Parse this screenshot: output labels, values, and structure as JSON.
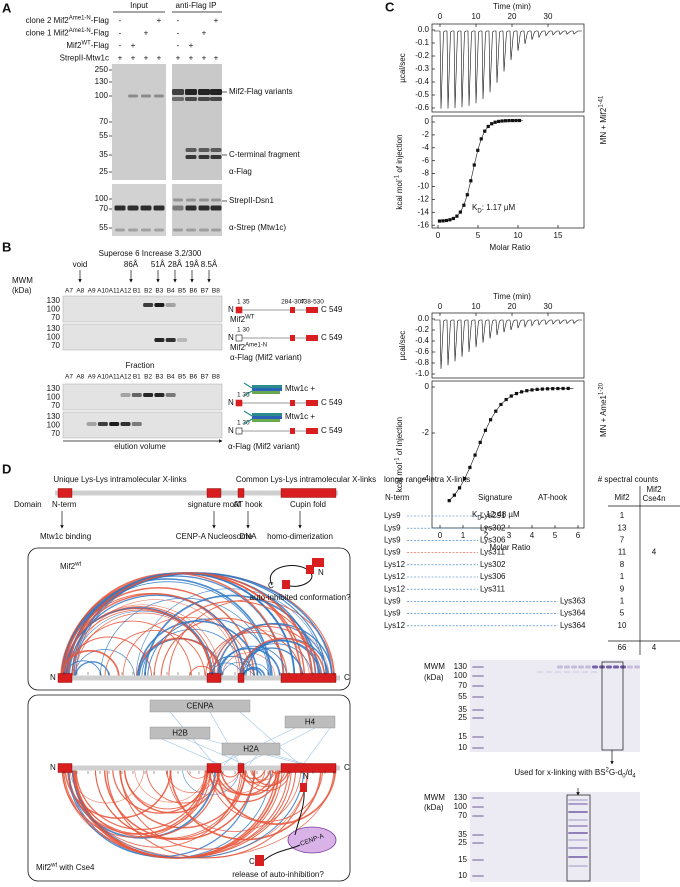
{
  "panel_a": {
    "letter": "A",
    "input": "Input",
    "ip": "anti-Flag IP",
    "rows": [
      {
        "label": [
          "clone 2 Mif2",
          "Ame1-N",
          "-Flag"
        ],
        "lanes": [
          "-",
          null,
          null,
          "+",
          "-",
          null,
          null,
          "+"
        ]
      },
      {
        "label": [
          "clone 1 Mif2",
          "Ame1-N",
          "-Flag"
        ],
        "lanes": [
          "-",
          null,
          "+",
          null,
          "-",
          null,
          "+",
          null
        ]
      },
      {
        "label": [
          "Mif2",
          "WT",
          "-Flag"
        ],
        "lanes": [
          "-",
          "+",
          null,
          null,
          "-",
          "+",
          null,
          null
        ]
      },
      {
        "label": [
          "StrepII-Mtw1c"
        ],
        "lanes": [
          "+",
          "+",
          "+",
          "+",
          "+",
          "+",
          "+",
          "+"
        ]
      }
    ],
    "mw_top": [
      "250",
      "130",
      "100",
      "70",
      "55",
      "35",
      "25"
    ],
    "mw_bottom": [
      "100",
      "70",
      "55"
    ],
    "annotations": [
      "Mif2-Flag variants",
      "C-terminal fragment",
      "α-Flag",
      "StrepII-Dsn1",
      "α-Strep (Mtw1c)"
    ]
  },
  "panel_b": {
    "letter": "B",
    "column": "Superose 6 Increase 3.2/300",
    "markers": [
      "void",
      "86Å",
      "51Å",
      "28Å",
      "19Å",
      "8.5Å"
    ],
    "mwm": "MWM",
    "kda": "(kDa)",
    "fractions": [
      "A7",
      "A8",
      "A9",
      "A10",
      "A11",
      "A12",
      "B1",
      "B2",
      "B3",
      "B4",
      "B5",
      "B6",
      "B7",
      "B8"
    ],
    "fraction_label": "Fraction",
    "gel_mw": [
      "130",
      "100",
      "70"
    ],
    "schematic": {
      "n": "N",
      "c": "C 549",
      "ranges": [
        "284-307",
        "438-530"
      ]
    },
    "constructs": [
      {
        "start": "1 35",
        "name": [
          "Mif2",
          "WT"
        ]
      },
      {
        "start": "1 30",
        "name": [
          "Mif2",
          "Ame1-N"
        ]
      }
    ],
    "flag": "α-Flag (Mif2 variant)",
    "complex": "Mtw1c +",
    "elution": "elution volume"
  },
  "panel_c": {
    "letter": "C",
    "itc": [
      {
        "time_label": "Time (min)",
        "time_ticks": [
          "0",
          "10",
          "20",
          "30"
        ],
        "power_label": "µcal/sec",
        "power_ticks": [
          "0.0",
          "-0.1",
          "-0.2",
          "-0.3",
          "-0.4",
          "-0.5",
          "-0.6"
        ],
        "heat_label": [
          "kcal mol",
          "-1",
          " of injection"
        ],
        "heat_ticks": [
          "0",
          "-2",
          "-4",
          "-6",
          "-8",
          "-10",
          "-12",
          "-14",
          "-16"
        ],
        "ratio_label": "Molar Ratio",
        "ratio_ticks": [
          "0",
          "5",
          "10",
          "15"
        ],
        "kd": [
          "K",
          "D",
          ": 1.17 µM"
        ],
        "sample": [
          "MN + Mif2",
          "1-41"
        ]
      },
      {
        "time_label": "Time (min)",
        "time_ticks": [
          "0",
          "10",
          "20",
          "30"
        ],
        "power_label": "µcal/sec",
        "power_ticks": [
          "0.0",
          "-0.2",
          "-0.4",
          "-0.6",
          "-0.8",
          "-1.0"
        ],
        "heat_label": [
          "kcal mol",
          "-1",
          " of injection"
        ],
        "heat_ticks": [
          "0",
          "-2",
          "-4"
        ],
        "ratio_label": "Molar Ratio",
        "ratio_ticks": [
          "0",
          "1",
          "2",
          "3",
          "4",
          "5",
          "6"
        ],
        "kd": [
          "K",
          "D",
          ": 12.48 µM"
        ],
        "sample": [
          "MN + Ame1",
          "1-20"
        ]
      }
    ]
  },
  "panel_d": {
    "letter": "D",
    "legend": {
      "unique": "Unique Lys-Lys intramolecular X-links",
      "common": "Common Lys-Lys intramolecular X-links",
      "unique_color": "#2f78c4",
      "common_color": "#e8553a"
    },
    "domains": {
      "label": "Domain",
      "names": [
        "N-term",
        "signature motif",
        "AT hook",
        "Cupin fold"
      ],
      "functions": [
        "Mtw1c binding",
        "CENP-A Nucleosome",
        "DNA",
        "homo-dimerization"
      ]
    },
    "apo": {
      "name": [
        "Mif2",
        "wt"
      ],
      "n": "N",
      "c": "C",
      "model": "auto-inhibited conformation?"
    },
    "bound": {
      "name": [
        "Mif2",
        "wt",
        " with Cse4"
      ],
      "histones": [
        "CENPA",
        "H4",
        "H2B",
        "H2A"
      ],
      "n": "N",
      "c": "C",
      "nucleosome": "CENP-A",
      "model": "release of auto-inhibition?"
    },
    "table": {
      "title": "longe range intra X-links",
      "counts_title": "# spectral counts",
      "headers": [
        "N-term",
        "Signature",
        "AT-hook",
        "Mif2",
        [
          "Mif2",
          "Cse4n"
        ]
      ],
      "rows": [
        {
          "from": "Lys9",
          "to": "Lys291",
          "mif2": 1,
          "cse4n": null,
          "color": "#2f78c4"
        },
        {
          "from": "Lys9",
          "to": "Lys302",
          "mif2": 13,
          "cse4n": null,
          "color": "#2f78c4"
        },
        {
          "from": "Lys9",
          "to": "Lys306",
          "mif2": 7,
          "cse4n": null,
          "color": "#2f78c4"
        },
        {
          "from": "Lys9",
          "to": "Lys311",
          "mif2": 11,
          "cse4n": 4,
          "color": "#e8553a"
        },
        {
          "from": "Lys12",
          "to": "Lys302",
          "mif2": 8,
          "cse4n": null,
          "color": "#2f78c4"
        },
        {
          "from": "Lys12",
          "to": "Lys306",
          "mif2": 1,
          "cse4n": null,
          "color": "#2f78c4"
        },
        {
          "from": "Lys12",
          "to": "Lys311",
          "mif2": 9,
          "cse4n": null,
          "color": "#2f78c4"
        },
        {
          "from": "Lys9",
          "to": "Lys363",
          "mif2": 1,
          "cse4n": null,
          "color": "#2f78c4"
        },
        {
          "from": "Lys9",
          "to": "Lys364",
          "mif2": 5,
          "cse4n": null,
          "color": "#2f78c4"
        },
        {
          "from": "Lys12",
          "to": "Lys364",
          "mif2": 10,
          "cse4n": null,
          "color": "#2f78c4"
        }
      ],
      "totals": {
        "mif2": 66,
        "cse4n": 4
      }
    },
    "gels": {
      "mwm": "MWM",
      "kda": "(kDa)",
      "gel1_mw": [
        "130",
        "100",
        "70",
        "55",
        "35",
        "25",
        "15",
        "10"
      ],
      "gel2_mw": [
        "130",
        "100",
        "70",
        "35",
        "25",
        "15",
        "10"
      ],
      "caption": [
        "Used for x-linking with BS",
        "2",
        "G-d",
        "0",
        "/d",
        "4"
      ]
    }
  }
}
